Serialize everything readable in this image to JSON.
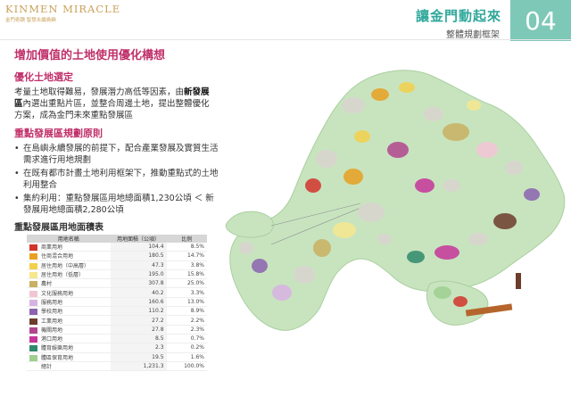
{
  "header": {
    "logo_text": "KINMEN MIRACLE",
    "logo_tagline": "金門奇蹟 智慧永續島嶼",
    "title": "讓金門動起來",
    "subtitle": "整體規劃框架",
    "page_number": "04"
  },
  "main": {
    "title": "增加價值的土地使用優化構想",
    "section1": {
      "title": "優化土地選定",
      "text_before": "考量土地取得難易，發展潛力高低等因素，由",
      "text_bold": "新發展區",
      "text_after": "內選出重點片區，並整合周邊土地，提出整體優化方案，成為金門未來重點發展區"
    },
    "section2": {
      "title": "重點發展區規劃原則",
      "bullets": [
        "在島嶼永續發展的前提下，配合產業發展及實質生活需求進行用地規劃",
        "在既有都市計畫土地利用框架下，推動重點式的土地利用整合",
        "集約利用：重點發展區用地總面積1,230公頃 ＜ 新發展用地總面積2,280公頃"
      ]
    },
    "table": {
      "title": "重點發展區用地面積表",
      "headers": [
        "用地名稱",
        "用地面積（公頃）",
        "比例"
      ],
      "rows": [
        {
          "name": "商業用地",
          "area": "104.4",
          "pct": "8.5%",
          "color": "#d2352c"
        },
        {
          "name": "住商混合用地",
          "area": "180.5",
          "pct": "14.7%",
          "color": "#e8a021"
        },
        {
          "name": "居住用地（中高層）",
          "area": "47.3",
          "pct": "3.8%",
          "color": "#f2d04b"
        },
        {
          "name": "居住用地（低層）",
          "area": "195.0",
          "pct": "15.8%",
          "color": "#f6e78e"
        },
        {
          "name": "農村",
          "area": "307.8",
          "pct": "25.0%",
          "color": "#c9b060"
        },
        {
          "name": "文化服務用地",
          "area": "40.2",
          "pct": "3.3%",
          "color": "#f3c4d6"
        },
        {
          "name": "服務用地",
          "area": "160.6",
          "pct": "13.0%",
          "color": "#d7b3e3"
        },
        {
          "name": "學校用地",
          "area": "110.2",
          "pct": "8.9%",
          "color": "#8b63b0"
        },
        {
          "name": "工業用地",
          "area": "27.2",
          "pct": "2.2%",
          "color": "#6c3d2b"
        },
        {
          "name": "機關用地",
          "area": "27.8",
          "pct": "2.3%",
          "color": "#b1468e"
        },
        {
          "name": "港口用地",
          "area": "8.5",
          "pct": "0.7%",
          "color": "#c5359a"
        },
        {
          "name": "體育娛樂用地",
          "area": "2.3",
          "pct": "0.2%",
          "color": "#2f8a6a"
        },
        {
          "name": "體區保育用地",
          "area": "19.5",
          "pct": "1.6%",
          "color": "#9fcf8f"
        },
        {
          "name": "總計",
          "area": "1,231.3",
          "pct": "100.0%",
          "color": ""
        }
      ]
    }
  },
  "map": {
    "land_color": "#c8e4bf",
    "urban_color": "#d9d3cf",
    "sea_color": "#ffffff"
  }
}
